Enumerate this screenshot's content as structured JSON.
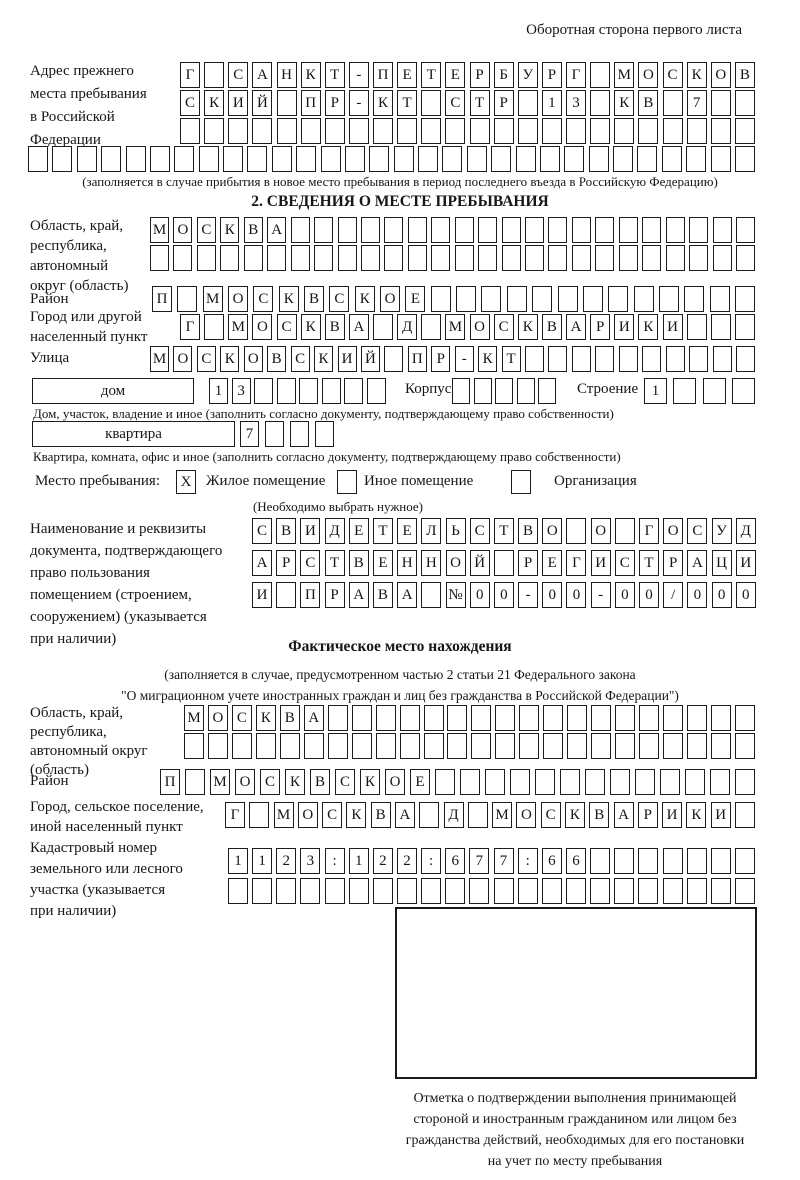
{
  "page": {
    "corner_note": "Оборотная сторона первого листа"
  },
  "prev_address": {
    "label_lines": [
      "Адрес прежнего",
      "места пребывания",
      "в Российской",
      "Федерации"
    ],
    "row1": [
      "Г",
      "",
      "С",
      "А",
      "Н",
      "К",
      "Т",
      "-",
      "П",
      "Е",
      "Т",
      "Е",
      "Р",
      "Б",
      "У",
      "Р",
      "Г",
      "",
      "М",
      "О",
      "С",
      "К",
      "О",
      "В"
    ],
    "row2": [
      "С",
      "К",
      "И",
      "Й",
      "",
      "П",
      "Р",
      "-",
      "К",
      "Т",
      "",
      "С",
      "Т",
      "Р",
      "",
      "1",
      "3",
      "",
      "К",
      "В",
      "",
      "7",
      "",
      ""
    ],
    "row3": [
      "",
      "",
      "",
      "",
      "",
      "",
      "",
      "",
      "",
      "",
      "",
      "",
      "",
      "",
      "",
      "",
      "",
      "",
      "",
      "",
      "",
      "",
      "",
      ""
    ],
    "row4": [
      "",
      "",
      "",
      "",
      "",
      "",
      "",
      "",
      "",
      "",
      "",
      "",
      "",
      "",
      "",
      "",
      "",
      "",
      "",
      "",
      "",
      "",
      "",
      "",
      "",
      "",
      "",
      "",
      "",
      ""
    ],
    "caption": "(заполняется в случае прибытия в новое место пребывания в период последнего въезда в Российскую Федерацию)"
  },
  "section2": {
    "title": "2. СВЕДЕНИЯ О МЕСТЕ ПРЕБЫВАНИЯ",
    "region": {
      "label_lines": [
        "Область, край,",
        "республика,",
        "автономный",
        "округ (область)"
      ],
      "row1": [
        "М",
        "О",
        "С",
        "К",
        "В",
        "А",
        "",
        "",
        "",
        "",
        "",
        "",
        "",
        "",
        "",
        "",
        "",
        "",
        "",
        "",
        "",
        "",
        "",
        "",
        "",
        ""
      ],
      "row2": [
        "",
        "",
        "",
        "",
        "",
        "",
        "",
        "",
        "",
        "",
        "",
        "",
        "",
        "",
        "",
        "",
        "",
        "",
        "",
        "",
        "",
        "",
        "",
        "",
        "",
        ""
      ]
    },
    "district": {
      "label": "Район",
      "row": [
        "П",
        "",
        "М",
        "О",
        "С",
        "К",
        "В",
        "С",
        "К",
        "О",
        "Е",
        "",
        "",
        "",
        "",
        "",
        "",
        "",
        "",
        "",
        "",
        "",
        "",
        ""
      ]
    },
    "city": {
      "label_lines": [
        "Город или другой",
        "населенный пункт"
      ],
      "row": [
        "Г",
        "",
        "М",
        "О",
        "С",
        "К",
        "В",
        "А",
        "",
        "Д",
        "",
        "М",
        "О",
        "С",
        "К",
        "В",
        "А",
        "Р",
        "И",
        "К",
        "И",
        "",
        "",
        ""
      ]
    },
    "street": {
      "label": "Улица",
      "row": [
        "М",
        "О",
        "С",
        "К",
        "О",
        "В",
        "С",
        "К",
        "И",
        "Й",
        "",
        "П",
        "Р",
        "-",
        "К",
        "Т",
        "",
        "",
        "",
        "",
        "",
        "",
        "",
        "",
        "",
        ""
      ]
    },
    "house": {
      "box_label": "дом",
      "cells": [
        "1",
        "3",
        "",
        "",
        "",
        "",
        "",
        ""
      ],
      "korpus_label": "Корпус",
      "korpus_cells": [
        "",
        "",
        "",
        "",
        ""
      ],
      "stroenie_label": "Строение",
      "stroenie_cells": [
        "1",
        "",
        "",
        ""
      ]
    },
    "house_caption": "Дом, участок, владение и иное (заполнить согласно документу, подтверждающему право собственности)",
    "apartment": {
      "box_label": "квартира",
      "cells": [
        "7",
        "",
        "",
        ""
      ]
    },
    "apartment_caption": "Квартира, комната, офис и иное (заполнить согласно документу, подтверждающему право собственности)",
    "stay_type": {
      "label": "Место пребывания:",
      "option1": {
        "label": "Жилое помещение",
        "checked": "X"
      },
      "option2": {
        "label": "Иное помещение",
        "checked": ""
      },
      "option3": {
        "label": "Организация",
        "checked": ""
      },
      "caption": "(Необходимо выбрать нужное)"
    }
  },
  "document": {
    "label_lines": [
      "Наименование и реквизиты",
      "документа, подтверждающего",
      "право пользования",
      "помещением (строением,",
      "сооружением) (указывается",
      "при наличии)"
    ],
    "row1": [
      "С",
      "В",
      "И",
      "Д",
      "Е",
      "Т",
      "Е",
      "Л",
      "Ь",
      "С",
      "Т",
      "В",
      "О",
      "",
      "О",
      "",
      "Г",
      "О",
      "С",
      "У",
      "Д"
    ],
    "row2": [
      "А",
      "Р",
      "С",
      "Т",
      "В",
      "Е",
      "Н",
      "Н",
      "О",
      "Й",
      "",
      "Р",
      "Е",
      "Г",
      "И",
      "С",
      "Т",
      "Р",
      "А",
      "Ц",
      "И"
    ],
    "row3": [
      "И",
      "",
      "П",
      "Р",
      "А",
      "В",
      "А",
      "",
      "№",
      "0",
      "0",
      "-",
      "0",
      "0",
      "-",
      "0",
      "0",
      "/",
      "0",
      "0",
      "0"
    ]
  },
  "actual_location": {
    "title": "Фактическое место нахождения",
    "caption_lines": [
      "(заполняется в случае, предусмотренном частью 2 статьи 21 Федерального закона",
      "\"О миграционном учете иностранных граждан и лиц без гражданства в Российской Федерации\")"
    ],
    "region": {
      "label_lines": [
        "Область, край,",
        "республика,",
        "автономный округ",
        "(область)"
      ],
      "row1": [
        "М",
        "О",
        "С",
        "К",
        "В",
        "А",
        "",
        "",
        "",
        "",
        "",
        "",
        "",
        "",
        "",
        "",
        "",
        "",
        "",
        "",
        "",
        "",
        "",
        ""
      ],
      "row2": [
        "",
        "",
        "",
        "",
        "",
        "",
        "",
        "",
        "",
        "",
        "",
        "",
        "",
        "",
        "",
        "",
        "",
        "",
        "",
        "",
        "",
        "",
        "",
        ""
      ]
    },
    "district": {
      "label": "Район",
      "row": [
        "П",
        "",
        "М",
        "О",
        "С",
        "К",
        "В",
        "С",
        "К",
        "О",
        "Е",
        "",
        "",
        "",
        "",
        "",
        "",
        "",
        "",
        "",
        "",
        "",
        "",
        ""
      ]
    },
    "city": {
      "label_lines": [
        "Город, сельское поселение,",
        "иной населенный пункт"
      ],
      "row": [
        "Г",
        "",
        "М",
        "О",
        "С",
        "К",
        "В",
        "А",
        "",
        "Д",
        "",
        "М",
        "О",
        "С",
        "К",
        "В",
        "А",
        "Р",
        "И",
        "К",
        "И",
        ""
      ]
    },
    "cadastral": {
      "label_lines": [
        "Кадастровый номер",
        "земельного или лесного",
        "участка (указывается",
        "при наличии)"
      ],
      "row1": [
        "1",
        "1",
        "2",
        "3",
        ":",
        "1",
        "2",
        "2",
        ":",
        "6",
        "7",
        "7",
        ":",
        "6",
        "6",
        "",
        "",
        "",
        "",
        "",
        "",
        ""
      ],
      "row2": [
        "",
        "",
        "",
        "",
        "",
        "",
        "",
        "",
        "",
        "",
        "",
        "",
        "",
        "",
        "",
        "",
        "",
        "",
        "",
        "",
        "",
        ""
      ]
    }
  },
  "confirmation": {
    "caption_lines": [
      "Отметка о подтверждении выполнения принимающей",
      "стороной и иностранным гражданином или лицом без",
      "гражданства действий, необходимых для его постановки",
      "на учет по месту пребывания"
    ]
  }
}
